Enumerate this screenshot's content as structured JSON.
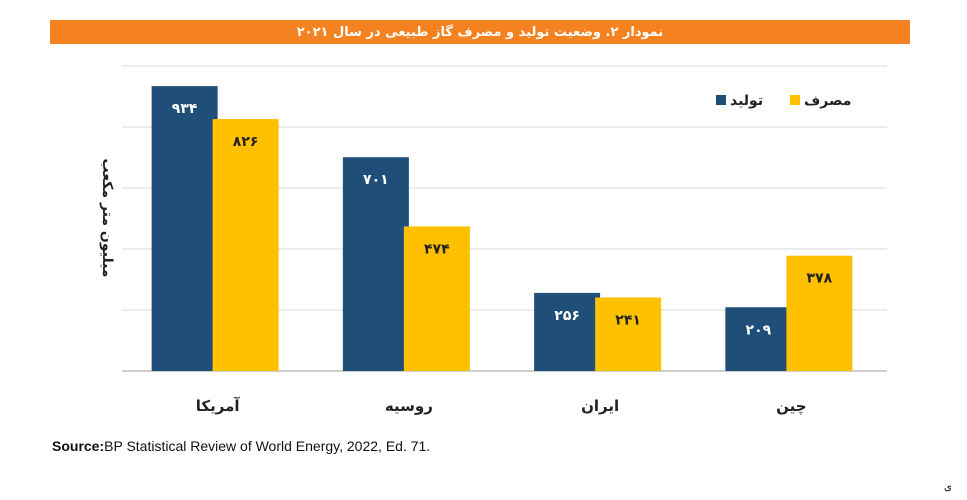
{
  "chart_data": {
    "type": "bar",
    "title": "نمودار ۲. وضعیت تولید و مصرف گاز طبیعی در سال ۲۰۲۱",
    "ylabel": "میلیون متر مکعب",
    "categories": [
      "آمریکا",
      "روسیه",
      "ایران",
      "چین"
    ],
    "series": [
      {
        "name": "تولید",
        "color": "#1f4e79",
        "values": [
          934,
          701,
          256,
          209
        ],
        "labels": [
          "۹۳۴",
          "۷۰۱",
          "۲۵۶",
          "۲۰۹"
        ]
      },
      {
        "name": "مصرف",
        "color": "#ffc000",
        "values": [
          826,
          474,
          241,
          378
        ],
        "labels": [
          "۸۲۶",
          "۴۷۴",
          "۲۴۱",
          "۳۷۸"
        ]
      }
    ],
    "ylim": [
      0,
      1000
    ],
    "grid": true,
    "legend": "top-right"
  },
  "source": {
    "label": "Source:",
    "text": "BP Statistical Review of World Energy, 2022, Ed. 71."
  },
  "corner_text": "ی"
}
